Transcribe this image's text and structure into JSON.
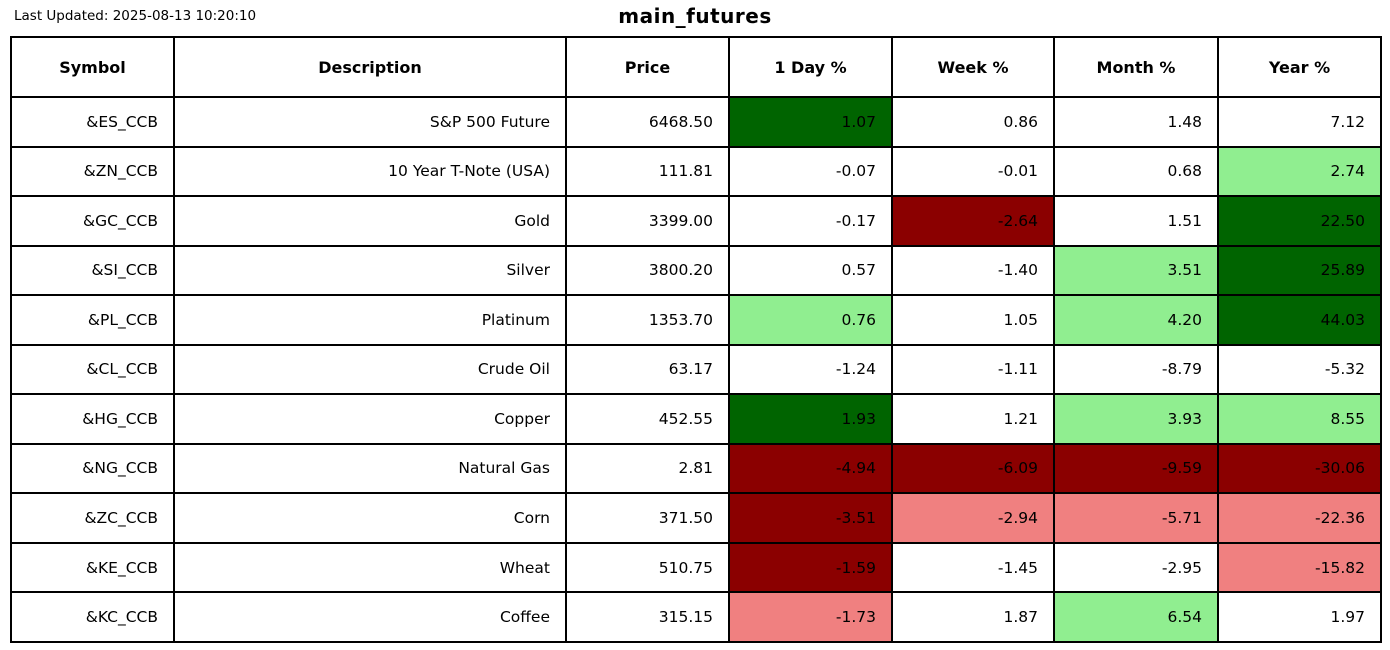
{
  "header": {
    "last_updated": "Last Updated: 2025-08-13 10:20:10",
    "title": "main_futures"
  },
  "chart_data": {
    "type": "table",
    "title": "main_futures",
    "last_updated": "Last Updated: 2025-08-13 10:20:10",
    "columns": [
      "Symbol",
      "Description",
      "Price",
      "1 Day %",
      "Week %",
      "Month %",
      "Year %"
    ],
    "colors": {
      "strong_gain": "#006400",
      "gain": "#90EE90",
      "strong_loss": "#8B0000",
      "loss": "#F08080",
      "none": "#FFFFFF",
      "border": "#000000",
      "text": "#000000"
    },
    "rows": [
      {
        "symbol": "&ES_CCB",
        "description": "S&P 500 Future",
        "price": "6468.50",
        "pcts": [
          {
            "value": "1.07",
            "bg": "strong_gain"
          },
          {
            "value": "0.86",
            "bg": "none"
          },
          {
            "value": "1.48",
            "bg": "none"
          },
          {
            "value": "7.12",
            "bg": "none"
          }
        ]
      },
      {
        "symbol": "&ZN_CCB",
        "description": "10 Year T-Note (USA)",
        "price": "111.81",
        "pcts": [
          {
            "value": "-0.07",
            "bg": "none"
          },
          {
            "value": "-0.01",
            "bg": "none"
          },
          {
            "value": "0.68",
            "bg": "none"
          },
          {
            "value": "2.74",
            "bg": "gain"
          }
        ]
      },
      {
        "symbol": "&GC_CCB",
        "description": "Gold",
        "price": "3399.00",
        "pcts": [
          {
            "value": "-0.17",
            "bg": "none"
          },
          {
            "value": "-2.64",
            "bg": "strong_loss"
          },
          {
            "value": "1.51",
            "bg": "none"
          },
          {
            "value": "22.50",
            "bg": "strong_gain"
          }
        ]
      },
      {
        "symbol": "&SI_CCB",
        "description": "Silver",
        "price": "3800.20",
        "pcts": [
          {
            "value": "0.57",
            "bg": "none"
          },
          {
            "value": "-1.40",
            "bg": "none"
          },
          {
            "value": "3.51",
            "bg": "gain"
          },
          {
            "value": "25.89",
            "bg": "strong_gain"
          }
        ]
      },
      {
        "symbol": "&PL_CCB",
        "description": "Platinum",
        "price": "1353.70",
        "pcts": [
          {
            "value": "0.76",
            "bg": "gain"
          },
          {
            "value": "1.05",
            "bg": "none"
          },
          {
            "value": "4.20",
            "bg": "gain"
          },
          {
            "value": "44.03",
            "bg": "strong_gain"
          }
        ]
      },
      {
        "symbol": "&CL_CCB",
        "description": "Crude Oil",
        "price": "63.17",
        "pcts": [
          {
            "value": "-1.24",
            "bg": "none"
          },
          {
            "value": "-1.11",
            "bg": "none"
          },
          {
            "value": "-8.79",
            "bg": "none"
          },
          {
            "value": "-5.32",
            "bg": "none"
          }
        ]
      },
      {
        "symbol": "&HG_CCB",
        "description": "Copper",
        "price": "452.55",
        "pcts": [
          {
            "value": "1.93",
            "bg": "strong_gain"
          },
          {
            "value": "1.21",
            "bg": "none"
          },
          {
            "value": "3.93",
            "bg": "gain"
          },
          {
            "value": "8.55",
            "bg": "gain"
          }
        ]
      },
      {
        "symbol": "&NG_CCB",
        "description": "Natural Gas",
        "price": "2.81",
        "pcts": [
          {
            "value": "-4.94",
            "bg": "strong_loss"
          },
          {
            "value": "-6.09",
            "bg": "strong_loss"
          },
          {
            "value": "-9.59",
            "bg": "strong_loss"
          },
          {
            "value": "-30.06",
            "bg": "strong_loss"
          }
        ]
      },
      {
        "symbol": "&ZC_CCB",
        "description": "Corn",
        "price": "371.50",
        "pcts": [
          {
            "value": "-3.51",
            "bg": "strong_loss"
          },
          {
            "value": "-2.94",
            "bg": "loss"
          },
          {
            "value": "-5.71",
            "bg": "loss"
          },
          {
            "value": "-22.36",
            "bg": "loss"
          }
        ]
      },
      {
        "symbol": "&KE_CCB",
        "description": "Wheat",
        "price": "510.75",
        "pcts": [
          {
            "value": "-1.59",
            "bg": "strong_loss"
          },
          {
            "value": "-1.45",
            "bg": "none"
          },
          {
            "value": "-2.95",
            "bg": "none"
          },
          {
            "value": "-15.82",
            "bg": "loss"
          }
        ]
      },
      {
        "symbol": "&KC_CCB",
        "description": "Coffee",
        "price": "315.15",
        "pcts": [
          {
            "value": "-1.73",
            "bg": "loss"
          },
          {
            "value": "1.87",
            "bg": "none"
          },
          {
            "value": "6.54",
            "bg": "gain"
          },
          {
            "value": "1.97",
            "bg": "none"
          }
        ]
      }
    ]
  }
}
